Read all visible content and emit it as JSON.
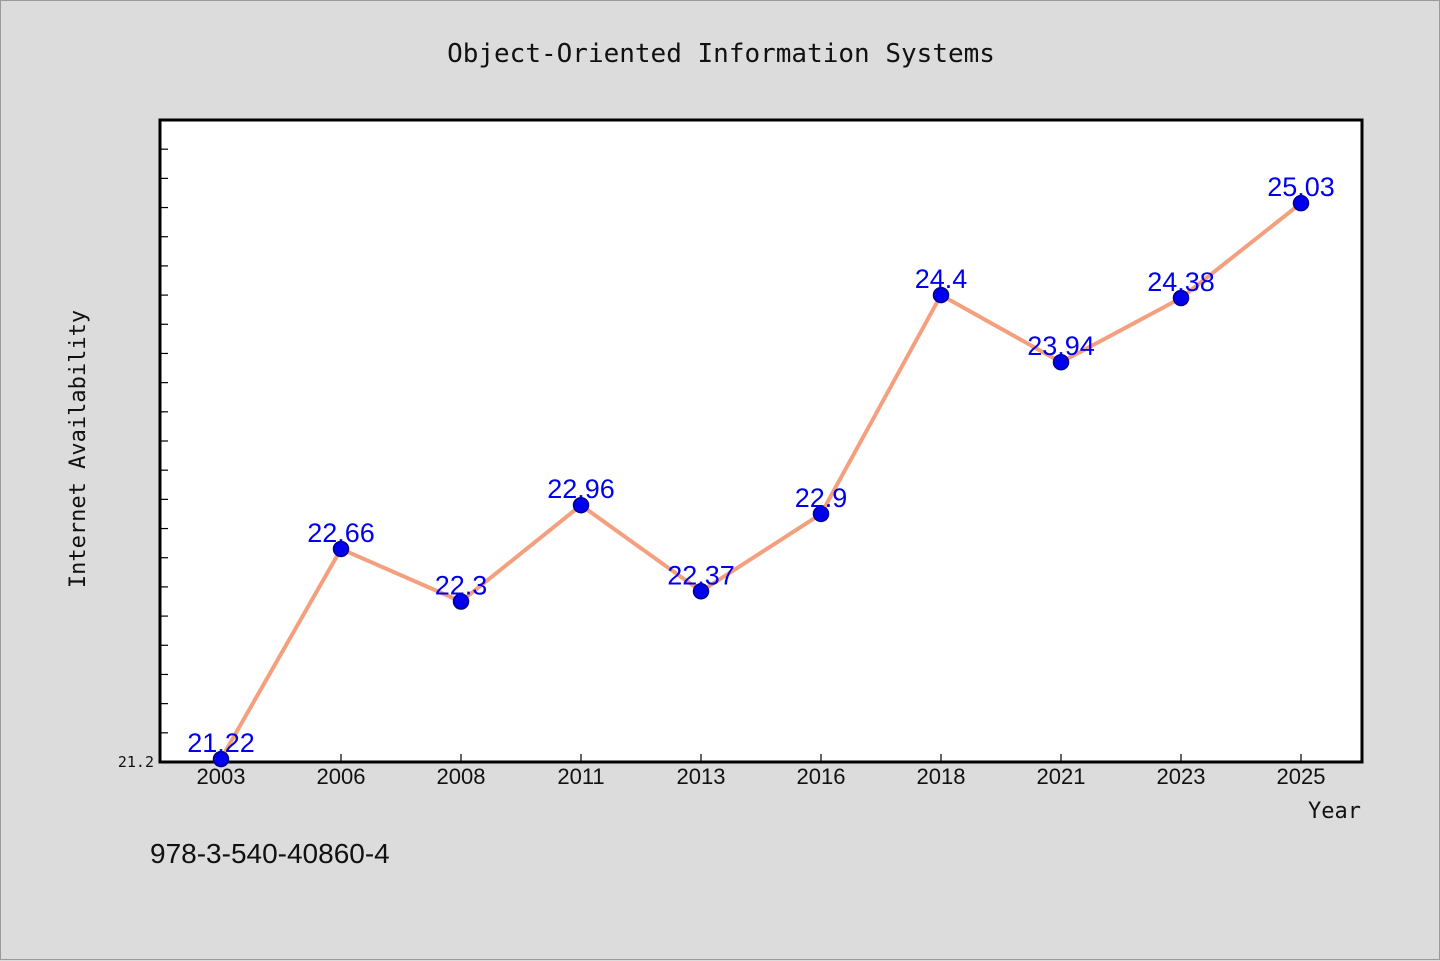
{
  "chart_data": {
    "type": "line",
    "title": "Object-Oriented Information Systems",
    "xlabel": "Year",
    "ylabel": "Internet Availability",
    "categories": [
      "2003",
      "2006",
      "2008",
      "2011",
      "2013",
      "2016",
      "2018",
      "2021",
      "2023",
      "2025"
    ],
    "series": [
      {
        "values": [
          21.22,
          22.66,
          22.3,
          22.96,
          22.37,
          22.9,
          24.4,
          23.94,
          24.38,
          25.03
        ]
      }
    ],
    "data_labels": [
      "21.22",
      "22.66",
      "22.3",
      "22.96",
      "22.37",
      "22.9",
      "24.4",
      "23.94",
      "24.38",
      "25.03"
    ],
    "ylim": [
      21.2,
      25.6
    ],
    "y_tick_labels": [
      "21.2"
    ],
    "grid": false,
    "legend": "none",
    "colors": {
      "line": "#f4a07f",
      "marker": "#0000ee",
      "data_label": "#0000ee",
      "background": "#dcdcdc",
      "plot_background": "#ffffff"
    }
  },
  "annotation": {
    "isbn": "978-3-540-40860-4"
  }
}
